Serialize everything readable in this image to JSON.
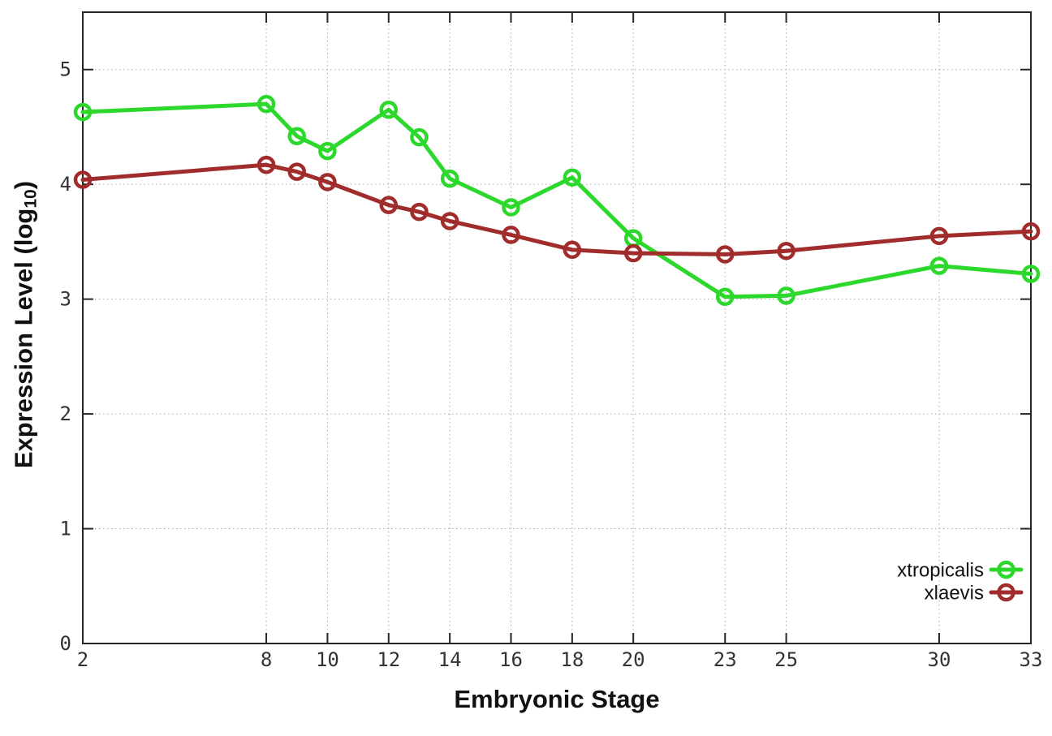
{
  "chart_data": {
    "type": "line",
    "title": "",
    "xlabel": "Embryonic Stage",
    "ylabel_prefix": "Expression Level (log",
    "ylabel_subscript": "10",
    "ylabel_suffix": ")",
    "x": [
      2,
      8,
      9,
      10,
      12,
      13,
      14,
      16,
      18,
      20,
      23,
      25,
      30,
      33
    ],
    "series": [
      {
        "name": "xtropicalis",
        "color": "#2cd82c",
        "values": [
          4.63,
          4.7,
          4.42,
          4.29,
          4.65,
          4.41,
          4.05,
          3.8,
          4.06,
          3.53,
          3.02,
          3.03,
          3.29,
          3.22
        ]
      },
      {
        "name": "xlaevis",
        "color": "#a02c2c",
        "values": [
          4.04,
          4.17,
          4.11,
          4.02,
          3.82,
          3.76,
          3.68,
          3.56,
          3.43,
          3.4,
          3.39,
          3.42,
          3.55,
          3.59
        ]
      }
    ],
    "xlim": [
      2,
      33
    ],
    "ylim": [
      0,
      5.5
    ],
    "xticks": {
      "values": [
        2,
        8,
        10,
        12,
        14,
        16,
        18,
        20,
        23,
        25,
        30,
        33
      ],
      "labels": [
        "2",
        "8",
        "10",
        "12",
        "14",
        "16",
        "18",
        "20",
        "23",
        "25",
        "30",
        "33"
      ]
    },
    "yticks": {
      "values": [
        0,
        1,
        2,
        3,
        4,
        5
      ],
      "labels": [
        "0",
        "1",
        "2",
        "3",
        "4",
        "5"
      ]
    },
    "grid": true,
    "legend_position": "inside-right",
    "colors": {
      "background": "#ffffff",
      "axis": "#262626",
      "grid": "#aaaaaa",
      "tick_label": "#333333"
    }
  }
}
